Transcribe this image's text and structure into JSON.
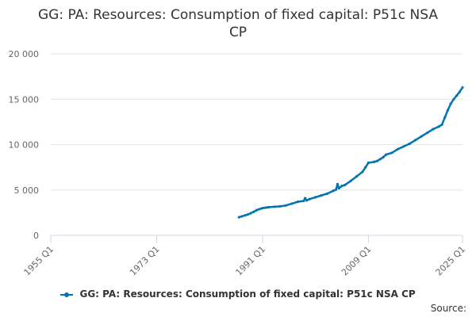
{
  "chart_data": {
    "type": "line",
    "title_line1": "GG: PA: Resources: Consumption of fixed capital: P51c NSA",
    "title_line2": "CP",
    "xlabel": "",
    "ylabel": "",
    "x_ticks": [
      "1955 Q1",
      "1973 Q1",
      "1991 Q1",
      "2009 Q1",
      "2025 Q1"
    ],
    "x_tick_years": [
      1955,
      1973,
      1991,
      2009,
      2025
    ],
    "xlim": [
      1955,
      2025
    ],
    "y_ticks": [
      "0",
      "5 000",
      "10 000",
      "15 000",
      "20 000"
    ],
    "y_tick_values": [
      0,
      5000,
      10000,
      15000,
      20000
    ],
    "ylim": [
      0,
      20000
    ],
    "grid": true,
    "legend_position": "bottom",
    "series": [
      {
        "name": "GG: PA: Resources: Consumption of fixed capital: P51c NSA CP",
        "color": "#0075b0",
        "x": [
          1987.0,
          1987.5,
          1988.0,
          1988.5,
          1989.0,
          1989.5,
          1990.0,
          1990.5,
          1991.0,
          1991.5,
          1992.0,
          1993.0,
          1994.0,
          1995.0,
          1996.0,
          1997.0,
          1998.0,
          1998.25,
          1998.5,
          1999.0,
          2000.0,
          2001.0,
          2002.0,
          2003.0,
          2003.5,
          2003.75,
          2004.0,
          2004.5,
          2005.0,
          2006.0,
          2007.0,
          2008.0,
          2008.5,
          2009.0,
          2010.0,
          2010.5,
          2011.0,
          2011.5,
          2012.0,
          2013.0,
          2014.0,
          2015.0,
          2016.0,
          2017.0,
          2018.0,
          2019.0,
          2020.0,
          2021.0,
          2021.5,
          2022.0,
          2022.5,
          2023.0,
          2023.5,
          2024.0,
          2024.5,
          2025.0
        ],
        "values": [
          2000,
          2100,
          2200,
          2300,
          2450,
          2600,
          2780,
          2900,
          3000,
          3050,
          3100,
          3150,
          3200,
          3300,
          3500,
          3700,
          3800,
          4100,
          3850,
          4000,
          4200,
          4400,
          4600,
          4900,
          5050,
          5650,
          5200,
          5450,
          5550,
          6000,
          6500,
          7000,
          7500,
          8000,
          8100,
          8200,
          8400,
          8600,
          8900,
          9100,
          9500,
          9800,
          10100,
          10500,
          10900,
          11300,
          11700,
          12000,
          12200,
          13000,
          13800,
          14500,
          15000,
          15400,
          15800,
          16300
        ]
      }
    ]
  },
  "legend": {
    "label": "GG: PA: Resources: Consumption of fixed capital: P51c NSA CP"
  },
  "footer": {
    "source_label": "Source:"
  }
}
